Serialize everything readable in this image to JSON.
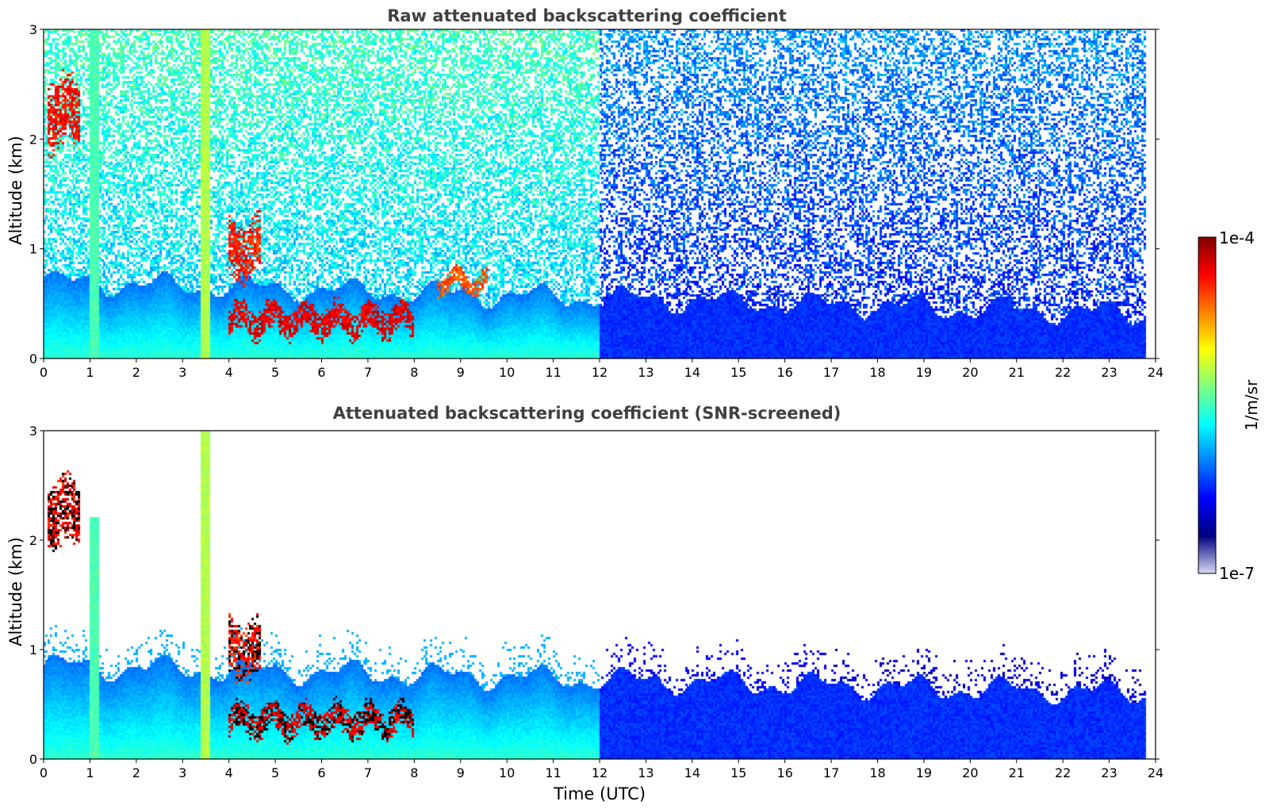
{
  "colors": {
    "jet": [
      "#00007f",
      "#0000ff",
      "#007fff",
      "#00ffff",
      "#7fff7f",
      "#ffff00",
      "#ff7f00",
      "#ff0000",
      "#7f0000"
    ],
    "low_end": "#d9d9f7"
  },
  "chart_data": [
    {
      "type": "heatmap",
      "title": "Raw attenuated backscattering coefficient",
      "xlabel": "",
      "ylabel": "Altitude (km)",
      "xlim": [
        0,
        24
      ],
      "ylim": [
        0,
        3
      ],
      "xticks": [
        "0",
        "1",
        "2",
        "3",
        "4",
        "5",
        "6",
        "7",
        "8",
        "9",
        "10",
        "11",
        "12",
        "13",
        "14",
        "15",
        "16",
        "17",
        "18",
        "19",
        "20",
        "21",
        "22",
        "23",
        "24"
      ],
      "yticks": [
        "0",
        "1",
        "2",
        "3"
      ],
      "data_end_hour": 23.8,
      "features": [
        {
          "kind": "boundary_layer",
          "x_range": [
            0,
            23.8
          ],
          "top_km": [
            0.7,
            0.4
          ],
          "level": 0.35
        },
        {
          "kind": "rain_column",
          "x_center": 3.5,
          "altitude_range": [
            0,
            3
          ],
          "level": 0.55
        },
        {
          "kind": "rain_column",
          "x_center": 1.1,
          "altitude_range": [
            0,
            3
          ],
          "level": 0.45
        },
        {
          "kind": "cloud_layer",
          "x_range": [
            4.0,
            8.0
          ],
          "altitude_km": [
            0.2,
            0.5
          ],
          "level": 0.95
        },
        {
          "kind": "cloud_layer",
          "x_range": [
            4.0,
            4.7
          ],
          "altitude_km": [
            0.7,
            1.3
          ],
          "level": 0.9
        },
        {
          "kind": "cloud_layer",
          "x_range": [
            0.1,
            0.8
          ],
          "altitude_km": [
            1.9,
            2.6
          ],
          "level": 0.92
        },
        {
          "kind": "cloud_layer",
          "x_range": [
            8.5,
            9.6
          ],
          "altitude_km": [
            0.6,
            0.8
          ],
          "level": 0.85
        },
        {
          "kind": "noise",
          "x_range": [
            0,
            12
          ],
          "above_km": 1.0,
          "level": 0.45
        },
        {
          "kind": "noise",
          "x_range": [
            12,
            23.8
          ],
          "above_km": 0.5,
          "level": 0.25
        }
      ]
    },
    {
      "type": "heatmap",
      "title": "Attenuated backscattering coefficient (SNR-screened)",
      "xlabel": "Time (UTC)",
      "ylabel": "Altitude (km)",
      "xlim": [
        0,
        24
      ],
      "ylim": [
        0,
        3
      ],
      "xticks": [
        "0",
        "1",
        "2",
        "3",
        "4",
        "5",
        "6",
        "7",
        "8",
        "9",
        "10",
        "11",
        "12",
        "13",
        "14",
        "15",
        "16",
        "17",
        "18",
        "19",
        "20",
        "21",
        "22",
        "23",
        "24"
      ],
      "yticks": [
        "0",
        "1",
        "2",
        "3"
      ],
      "data_end_hour": 23.8,
      "features": [
        {
          "kind": "boundary_layer",
          "x_range": [
            0,
            23.8
          ],
          "top_km": [
            0.85,
            0.6
          ],
          "level": 0.3
        },
        {
          "kind": "rain_column",
          "x_center": 3.5,
          "altitude_range": [
            0,
            3
          ],
          "level": 0.55
        },
        {
          "kind": "rain_column",
          "x_center": 1.1,
          "altitude_range": [
            0,
            2.2
          ],
          "level": 0.45
        },
        {
          "kind": "cloud_layer",
          "x_range": [
            4.0,
            8.0
          ],
          "altitude_km": [
            0.2,
            0.5
          ],
          "level": 0.95,
          "edge": "black"
        },
        {
          "kind": "cloud_layer",
          "x_range": [
            0.1,
            0.8
          ],
          "altitude_km": [
            1.9,
            2.6
          ],
          "level": 0.92,
          "edge": "black"
        },
        {
          "kind": "cloud_layer",
          "x_range": [
            4.0,
            4.7
          ],
          "altitude_km": [
            0.7,
            1.3
          ],
          "level": 0.9,
          "edge": "black"
        }
      ]
    }
  ],
  "colorbar": {
    "label": "1/m/sr",
    "max_label": "1e-4",
    "min_label": "1e-7",
    "scale": "log"
  }
}
